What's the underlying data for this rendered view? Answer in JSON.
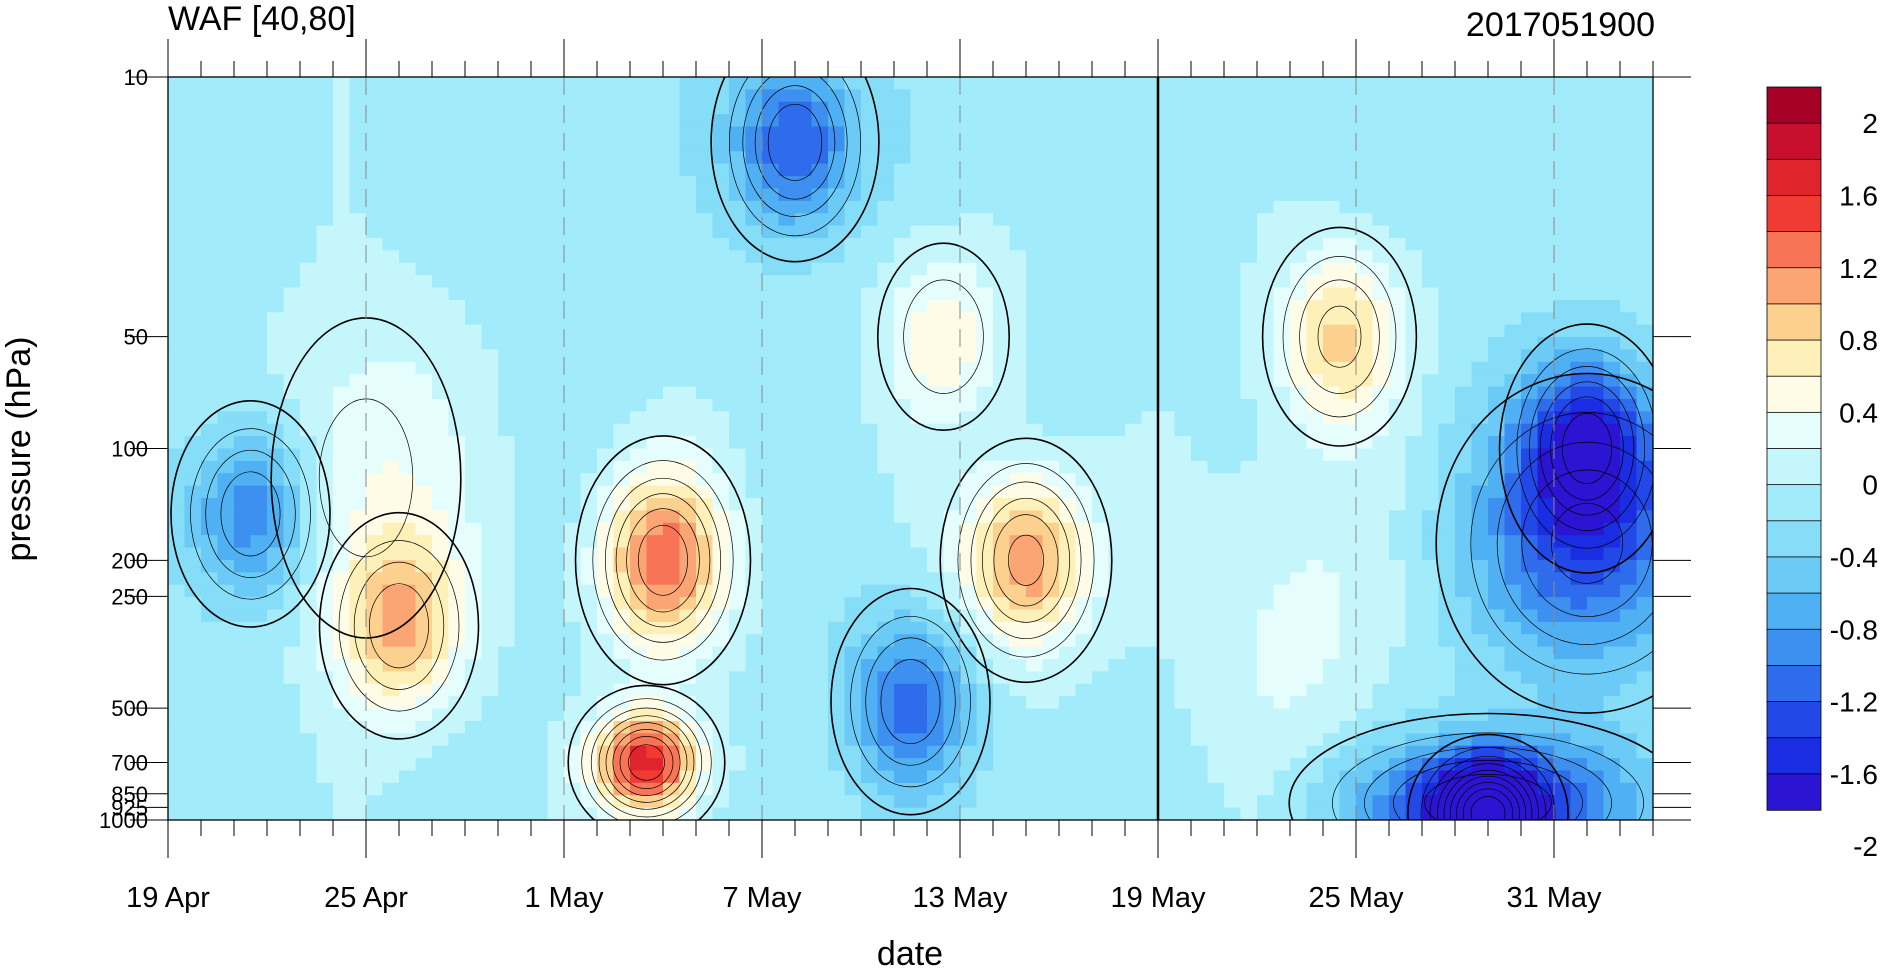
{
  "chart_data": {
    "type": "heatmap",
    "subtype": "filled-contour time–pressure cross section",
    "title_left": "WAF [40,80]",
    "title_right": "2017051900",
    "xlabel": "date",
    "ylabel": "pressure (hPa)",
    "x_ticks": [
      {
        "day": 0,
        "label": "19 Apr"
      },
      {
        "day": 6,
        "label": "25 Apr"
      },
      {
        "day": 12,
        "label": "1 May"
      },
      {
        "day": 18,
        "label": "7 May"
      },
      {
        "day": 24,
        "label": "13 May"
      },
      {
        "day": 30,
        "label": "19 May"
      },
      {
        "day": 36,
        "label": "25 May"
      },
      {
        "day": 42,
        "label": "31 May"
      }
    ],
    "xlim_days": [
      0,
      45
    ],
    "analysis_day": 30,
    "y_ticks": [
      10,
      50,
      100,
      200,
      250,
      500,
      700,
      850,
      925,
      1000
    ],
    "y_scale": "log (inverted, 10 hPa at top)",
    "ylim": [
      1000,
      10
    ],
    "colorbar": {
      "labels": [
        "2",
        "1.6",
        "1.2",
        "0.8",
        "0.4",
        "0",
        "-0.4",
        "-0.8",
        "-1.2",
        "-1.6",
        "-2"
      ],
      "colors": [
        "#a50026",
        "#c8102e",
        "#e0242d",
        "#ef3b33",
        "#f87457",
        "#fba574",
        "#fcd08e",
        "#fdf0b8",
        "#fefce6",
        "#e6fdfd",
        "#c4f6fc",
        "#a2ebfb",
        "#85ddf8",
        "#6ccbf6",
        "#4fb0f3",
        "#3d8ff0",
        "#2f6cec",
        "#2249e8",
        "#1a2de3",
        "#2b14d2"
      ]
    },
    "features": [
      {
        "kind": "positive max",
        "day": 14.5,
        "hPa": 700,
        "value": 1.8
      },
      {
        "kind": "positive max",
        "day": 15,
        "hPa": 200,
        "value": 1.4
      },
      {
        "kind": "positive max",
        "day": 26,
        "hPa": 200,
        "value": 1.3
      },
      {
        "kind": "positive max",
        "day": 7,
        "hPa": 300,
        "value": 1.0
      },
      {
        "kind": "positive max",
        "day": 35.5,
        "hPa": 50,
        "value": 0.9
      },
      {
        "kind": "positive max",
        "day": 23.5,
        "hPa": 50,
        "value": 0.6
      },
      {
        "kind": "negative min",
        "day": 40,
        "hPa": 960,
        "value": -2.0
      },
      {
        "kind": "negative min",
        "day": 43,
        "hPa": 100,
        "value": -1.4
      },
      {
        "kind": "negative min",
        "day": 19,
        "hPa": 15,
        "value": -1.2
      },
      {
        "kind": "negative min",
        "day": 2.5,
        "hPa": 150,
        "value": -1.0
      },
      {
        "kind": "negative min",
        "day": 22.5,
        "hPa": 480,
        "value": -1.0
      }
    ]
  }
}
